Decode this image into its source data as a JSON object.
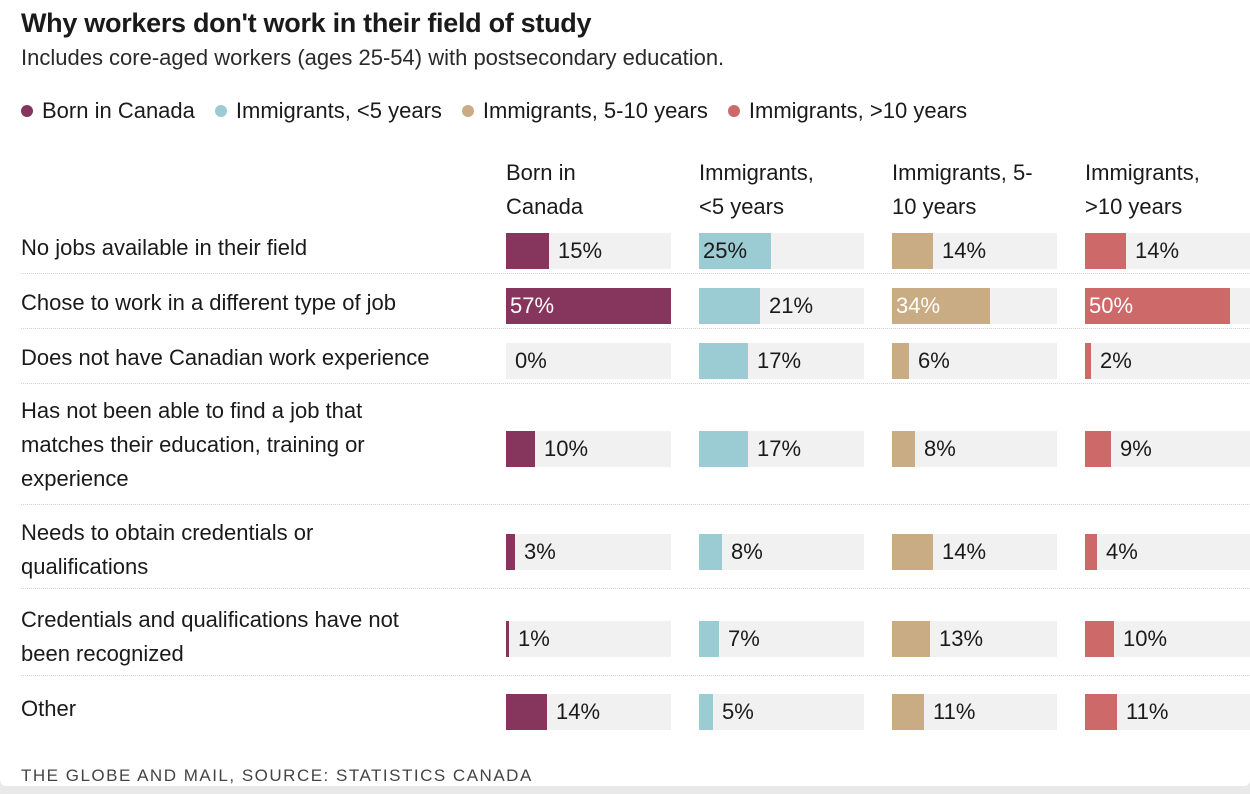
{
  "chart_data": {
    "type": "bar",
    "title": "Why workers don't work in their field of study",
    "subtitle": "Includes core-aged workers (ages 25-54) with postsecondary education.",
    "unit": "%",
    "categories": [
      "No jobs available in their field",
      "Chose to work in a different type of job",
      "Does not have Canadian work experience",
      "Has not been able to find a job that matches their education, training or experience",
      "Needs to obtain credentials or qualifications",
      "Credentials and qualifications have not been recognized",
      "Other"
    ],
    "category_lines": [
      [
        "No jobs available in their field"
      ],
      [
        "Chose to work in a different type of job"
      ],
      [
        "Does not have Canadian work experience"
      ],
      [
        "Has not been able to find a job that",
        "matches their education, training or",
        "experience"
      ],
      [
        "Needs to obtain credentials or",
        "qualifications"
      ],
      [
        "Credentials and qualifications have not",
        "been recognized"
      ],
      [
        "Other"
      ]
    ],
    "series": [
      {
        "name": "Born in Canada",
        "header_lines": [
          "Born in",
          "Canada"
        ],
        "color": "#86365c",
        "values": [
          15,
          57,
          0,
          10,
          3,
          1,
          14
        ]
      },
      {
        "name": "Immigrants, <5 years",
        "header_lines": [
          "Immigrants,",
          "<5 years"
        ],
        "color": "#9bcbd3",
        "values": [
          25,
          21,
          17,
          17,
          8,
          7,
          5
        ]
      },
      {
        "name": "Immigrants, 5-10 years",
        "header_lines": [
          "Immigrants, 5-",
          "10 years"
        ],
        "color": "#c9ab84",
        "values": [
          14,
          34,
          6,
          8,
          14,
          13,
          11
        ]
      },
      {
        "name": "Immigrants, >10 years",
        "header_lines": [
          "Immigrants,",
          ">10 years"
        ],
        "color": "#cd6969",
        "values": [
          14,
          50,
          2,
          9,
          4,
          10,
          11
        ]
      }
    ],
    "ylim": [
      0,
      60
    ]
  },
  "footer": "THE GLOBE AND MAIL, SOURCE: STATISTICS CANADA"
}
